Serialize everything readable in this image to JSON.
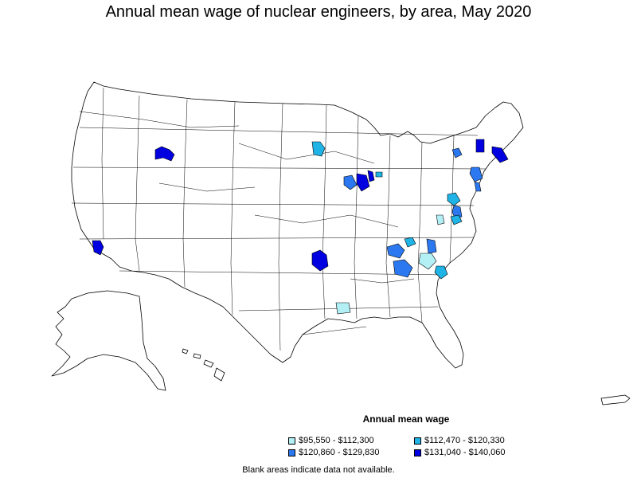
{
  "title": "Annual mean wage of nuclear engineers, by area, May 2020",
  "legend": {
    "title": "Annual mean wage",
    "items": [
      {
        "label": "$95,550 - $112,300",
        "color": "#b3f0f5"
      },
      {
        "label": "$112,470 - $120,330",
        "color": "#1fb3e6"
      },
      {
        "label": "$120,860 - $129,830",
        "color": "#2b78f0"
      },
      {
        "label": "$131,040 - $140,060",
        "color": "#0000e0"
      }
    ]
  },
  "footnote": "Blank areas indicate data not available."
}
